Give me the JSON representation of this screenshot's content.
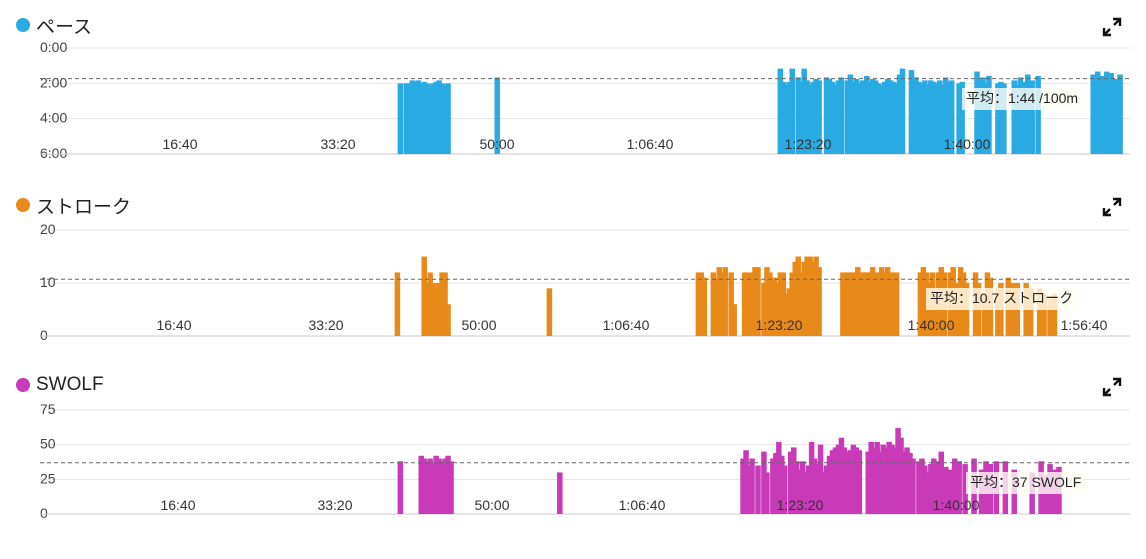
{
  "panels": [
    {
      "title": "ペース",
      "color": "#2aaae2",
      "chart_data": {
        "type": "bar",
        "x_tick_labels": [
          "16:40",
          "33:20",
          "50:00",
          "1:06:40",
          "1:23:20",
          "1:40:00"
        ],
        "x_range_seconds": [
          0,
          7248
        ],
        "y_tick_labels": [
          "0:00",
          "2:00",
          "4:00",
          "6:00"
        ],
        "y_ticks_seconds": [
          0,
          120,
          240,
          360
        ],
        "ylim_seconds": [
          0,
          360
        ],
        "y_inverted": true,
        "average_value_seconds": 104,
        "average_label": "平均：1:44 /100m",
        "bars": [
          [
            2400,
            120
          ],
          [
            2440,
            120
          ],
          [
            2460,
            120
          ],
          [
            2480,
            110
          ],
          [
            2500,
            115
          ],
          [
            2520,
            110
          ],
          [
            2540,
            120
          ],
          [
            2560,
            115
          ],
          [
            2580,
            120
          ],
          [
            2600,
            125
          ],
          [
            2620,
            120
          ],
          [
            2640,
            115
          ],
          [
            2660,
            110
          ],
          [
            2680,
            120
          ],
          [
            2700,
            125
          ],
          [
            2720,
            120
          ],
          [
            3050,
            100
          ],
          [
            4950,
            70
          ],
          [
            4970,
            115
          ],
          [
            4990,
            125
          ],
          [
            5010,
            115
          ],
          [
            5030,
            70
          ],
          [
            5070,
            100
          ],
          [
            5090,
            115
          ],
          [
            5110,
            70
          ],
          [
            5130,
            110
          ],
          [
            5150,
            125
          ],
          [
            5170,
            115
          ],
          [
            5190,
            105
          ],
          [
            5210,
            110
          ],
          [
            5260,
            100
          ],
          [
            5280,
            105
          ],
          [
            5300,
            115
          ],
          [
            5320,
            125
          ],
          [
            5340,
            110
          ],
          [
            5360,
            100
          ],
          [
            5400,
            110
          ],
          [
            5420,
            90
          ],
          [
            5440,
            115
          ],
          [
            5460,
            105
          ],
          [
            5480,
            120
          ],
          [
            5500,
            110
          ],
          [
            5530,
            95
          ],
          [
            5550,
            115
          ],
          [
            5570,
            105
          ],
          [
            5590,
            110
          ],
          [
            5610,
            120
          ],
          [
            5630,
            125
          ],
          [
            5650,
            115
          ],
          [
            5670,
            105
          ],
          [
            5690,
            110
          ],
          [
            5710,
            115
          ],
          [
            5730,
            120
          ],
          [
            5750,
            90
          ],
          [
            5770,
            70
          ],
          [
            5830,
            75
          ],
          [
            5860,
            100
          ],
          [
            5880,
            115
          ],
          [
            5900,
            120
          ],
          [
            5920,
            110
          ],
          [
            5940,
            125
          ],
          [
            5960,
            110
          ],
          [
            5980,
            115
          ],
          [
            6000,
            120
          ],
          [
            6020,
            110
          ],
          [
            6040,
            125
          ],
          [
            6060,
            100
          ],
          [
            6080,
            115
          ],
          [
            6100,
            110
          ],
          [
            6150,
            120
          ],
          [
            6170,
            115
          ],
          [
            6270,
            80
          ],
          [
            6290,
            110
          ],
          [
            6310,
            100
          ],
          [
            6330,
            120
          ],
          [
            6350,
            95
          ],
          [
            6410,
            120
          ],
          [
            6430,
            115
          ],
          [
            6450,
            120
          ],
          [
            6520,
            110
          ],
          [
            6540,
            125
          ],
          [
            6560,
            100
          ],
          [
            6580,
            115
          ],
          [
            6610,
            90
          ],
          [
            6640,
            110
          ],
          [
            6680,
            95
          ],
          [
            7050,
            90
          ],
          [
            7080,
            80
          ],
          [
            7110,
            95
          ],
          [
            7140,
            80
          ],
          [
            7170,
            85
          ],
          [
            7200,
            105
          ],
          [
            7230,
            90
          ]
        ]
      }
    },
    {
      "title": "ストローク",
      "color": "#e88a1a",
      "chart_data": {
        "type": "bar",
        "x_tick_labels": [
          "16:40",
          "33:20",
          "50:00",
          "1:06:40",
          "1:23:20",
          "1:40:00",
          "1:56:40"
        ],
        "x_range_seconds": [
          0,
          7248
        ],
        "y_tick_labels": [
          "20",
          "10",
          "0"
        ],
        "y_ticks": [
          20,
          10,
          0
        ],
        "ylim": [
          0,
          20
        ],
        "average_value": 10.7,
        "average_label": "平均：10.7 ストローク",
        "bars": [
          [
            2380,
            12
          ],
          [
            2560,
            15
          ],
          [
            2580,
            10
          ],
          [
            2600,
            12
          ],
          [
            2620,
            10
          ],
          [
            2640,
            10
          ],
          [
            2660,
            10
          ],
          [
            2680,
            12
          ],
          [
            2700,
            12
          ],
          [
            2720,
            6
          ],
          [
            3400,
            9
          ],
          [
            4400,
            12
          ],
          [
            4420,
            12
          ],
          [
            4440,
            11
          ],
          [
            4500,
            12
          ],
          [
            4520,
            11
          ],
          [
            4540,
            13
          ],
          [
            4560,
            12
          ],
          [
            4580,
            13
          ],
          [
            4620,
            12
          ],
          [
            4640,
            6
          ],
          [
            4710,
            12
          ],
          [
            4730,
            12
          ],
          [
            4760,
            12
          ],
          [
            4780,
            13
          ],
          [
            4800,
            13
          ],
          [
            4840,
            10
          ],
          [
            4860,
            13
          ],
          [
            4880,
            12
          ],
          [
            4910,
            11
          ],
          [
            4930,
            10
          ],
          [
            4950,
            12
          ],
          [
            4970,
            12
          ],
          [
            4990,
            8
          ],
          [
            5010,
            9
          ],
          [
            5030,
            12
          ],
          [
            5050,
            14
          ],
          [
            5070,
            15
          ],
          [
            5090,
            12
          ],
          [
            5110,
            14
          ],
          [
            5130,
            15
          ],
          [
            5150,
            15
          ],
          [
            5170,
            14
          ],
          [
            5190,
            15
          ],
          [
            5210,
            13
          ],
          [
            5370,
            12
          ],
          [
            5390,
            12
          ],
          [
            5410,
            12
          ],
          [
            5430,
            12
          ],
          [
            5450,
            12
          ],
          [
            5470,
            13
          ],
          [
            5490,
            12
          ],
          [
            5510,
            12
          ],
          [
            5530,
            12
          ],
          [
            5550,
            12
          ],
          [
            5570,
            13
          ],
          [
            5590,
            12
          ],
          [
            5610,
            12
          ],
          [
            5630,
            13
          ],
          [
            5650,
            12
          ],
          [
            5670,
            13
          ],
          [
            5690,
            12
          ],
          [
            5710,
            12
          ],
          [
            5730,
            12
          ],
          [
            5890,
            12
          ],
          [
            5910,
            13
          ],
          [
            5930,
            12
          ],
          [
            5950,
            10
          ],
          [
            5970,
            12
          ],
          [
            5990,
            8
          ],
          [
            6010,
            12
          ],
          [
            6030,
            13
          ],
          [
            6050,
            12
          ],
          [
            6090,
            12
          ],
          [
            6110,
            13
          ],
          [
            6140,
            10
          ],
          [
            6160,
            13
          ],
          [
            6180,
            12
          ],
          [
            6200,
            10
          ],
          [
            6260,
            12
          ],
          [
            6280,
            10
          ],
          [
            6320,
            8
          ],
          [
            6340,
            12
          ],
          [
            6360,
            11
          ],
          [
            6410,
            9
          ],
          [
            6430,
            10
          ],
          [
            6480,
            11
          ],
          [
            6510,
            10
          ],
          [
            6540,
            10
          ],
          [
            6600,
            10
          ],
          [
            6630,
            9
          ],
          [
            6690,
            9
          ],
          [
            6720,
            8
          ],
          [
            6760,
            7
          ],
          [
            6790,
            8
          ]
        ]
      }
    },
    {
      "title": "SWOLF",
      "color": "#c83ab8",
      "chart_data": {
        "type": "bar",
        "x_tick_labels": [
          "16:40",
          "33:20",
          "50:00",
          "1:06:40",
          "1:23:20",
          "1:40:00"
        ],
        "x_range_seconds": [
          0,
          7248
        ],
        "y_tick_labels": [
          "75",
          "50",
          "25",
          "0"
        ],
        "y_ticks": [
          75,
          50,
          25,
          0
        ],
        "ylim": [
          0,
          75
        ],
        "average_value": 37,
        "average_label": "平均：37 SWOLF",
        "bars": [
          [
            2400,
            38
          ],
          [
            2540,
            42
          ],
          [
            2560,
            40
          ],
          [
            2580,
            38
          ],
          [
            2600,
            40
          ],
          [
            2620,
            36
          ],
          [
            2640,
            42
          ],
          [
            2660,
            40
          ],
          [
            2680,
            38
          ],
          [
            2700,
            40
          ],
          [
            2720,
            42
          ],
          [
            2740,
            38
          ],
          [
            3470,
            30
          ],
          [
            4700,
            40
          ],
          [
            4720,
            46
          ],
          [
            4740,
            35
          ],
          [
            4760,
            40
          ],
          [
            4800,
            35
          ],
          [
            4840,
            45
          ],
          [
            4860,
            30
          ],
          [
            4900,
            40
          ],
          [
            4920,
            44
          ],
          [
            4940,
            52
          ],
          [
            4960,
            42
          ],
          [
            4980,
            35
          ],
          [
            5020,
            45
          ],
          [
            5040,
            48
          ],
          [
            5060,
            38
          ],
          [
            5080,
            32
          ],
          [
            5100,
            38
          ],
          [
            5120,
            30
          ],
          [
            5140,
            35
          ],
          [
            5160,
            52
          ],
          [
            5180,
            40
          ],
          [
            5200,
            36
          ],
          [
            5220,
            50
          ],
          [
            5240,
            30
          ],
          [
            5260,
            35
          ],
          [
            5280,
            42
          ],
          [
            5300,
            46
          ],
          [
            5320,
            48
          ],
          [
            5340,
            50
          ],
          [
            5360,
            55
          ],
          [
            5380,
            48
          ],
          [
            5400,
            45
          ],
          [
            5420,
            46
          ],
          [
            5440,
            50
          ],
          [
            5460,
            48
          ],
          [
            5480,
            46
          ],
          [
            5540,
            45
          ],
          [
            5560,
            52
          ],
          [
            5580,
            48
          ],
          [
            5600,
            52
          ],
          [
            5620,
            45
          ],
          [
            5640,
            50
          ],
          [
            5660,
            48
          ],
          [
            5680,
            52
          ],
          [
            5700,
            50
          ],
          [
            5720,
            48
          ],
          [
            5740,
            62
          ],
          [
            5760,
            55
          ],
          [
            5780,
            45
          ],
          [
            5800,
            48
          ],
          [
            5820,
            44
          ],
          [
            5840,
            40
          ],
          [
            5880,
            38
          ],
          [
            5900,
            40
          ],
          [
            5920,
            35
          ],
          [
            5940,
            30
          ],
          [
            5960,
            36
          ],
          [
            5980,
            40
          ],
          [
            6000,
            38
          ],
          [
            6030,
            45
          ],
          [
            6060,
            34
          ],
          [
            6090,
            32
          ],
          [
            6120,
            40
          ],
          [
            6150,
            38
          ],
          [
            6190,
            36
          ],
          [
            6250,
            40
          ],
          [
            6300,
            32
          ],
          [
            6330,
            38
          ],
          [
            6360,
            36
          ],
          [
            6400,
            38
          ],
          [
            6460,
            38
          ],
          [
            6520,
            32
          ],
          [
            6640,
            30
          ],
          [
            6700,
            38
          ],
          [
            6730,
            28
          ],
          [
            6760,
            36
          ],
          [
            6790,
            32
          ],
          [
            6820,
            34
          ]
        ]
      }
    }
  ]
}
